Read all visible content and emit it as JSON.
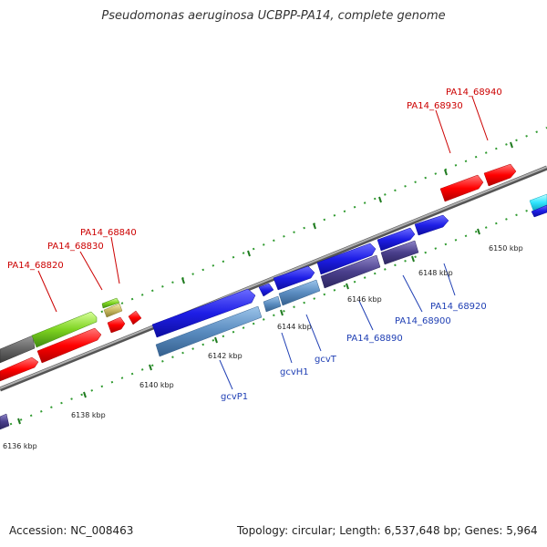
{
  "title": "Pseudomonas aeruginosa UCBPP-PA14, complete genome",
  "footer": {
    "accession": "Accession: NC_008463",
    "summary": "Topology: circular; Length: 6,537,648 bp; Genes: 5,964"
  },
  "colors": {
    "backbone": "#8c8c8c",
    "tick_major": "#1f7a1f",
    "gene_red": "#ff0000",
    "gene_blue": "#1e1ee6",
    "gene_steel": "#5a8cc0",
    "gene_indigo": "#4a3f8c",
    "gene_green": "#7ed321",
    "gene_cyan": "#33e6ff",
    "label_red": "#cc0000",
    "label_blue": "#1f3fb4"
  },
  "tick_labels": {
    "t6136": "6136 kbp",
    "t6138": "6138 kbp",
    "t6140": "6140 kbp",
    "t6142": "6142 kbp",
    "t6144": "6144 kbp",
    "t6146": "6146 kbp",
    "t6148": "6148 kbp",
    "t6150": "6150 kbp"
  },
  "gene_labels": {
    "pa14_68820": "PA14_68820",
    "pa14_68830": "PA14_68830",
    "pa14_68840": "PA14_68840",
    "pa14_68930": "PA14_68930",
    "pa14_68940": "PA14_68940",
    "gcvP1": "gcvP1",
    "gcvH1": "gcvH1",
    "gcvT": "gcvT",
    "pa14_68890": "PA14_68890",
    "pa14_68900": "PA14_68900",
    "pa14_68920": "PA14_68920"
  }
}
